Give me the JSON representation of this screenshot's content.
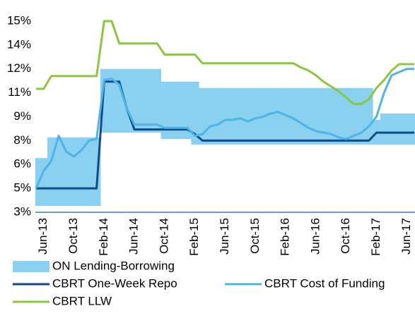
{
  "chart_data": {
    "type": "line",
    "categories": [
      null,
      "Jun-13",
      null,
      null,
      null,
      "Oct-13",
      null,
      null,
      null,
      "Feb-14",
      null,
      null,
      null,
      "Jun-14",
      null,
      null,
      null,
      "Oct-14",
      null,
      null,
      null,
      "Feb-15",
      null,
      null,
      null,
      "Jun-15",
      null,
      null,
      null,
      "Oct-15",
      null,
      null,
      null,
      "Feb-16",
      null,
      null,
      null,
      "Jun-16",
      null,
      null,
      null,
      "Oct-16",
      null,
      null,
      null,
      "Feb-17",
      null,
      null,
      null,
      "Jun-17",
      null
    ],
    "ylim": [
      3,
      15
    ],
    "yticks": [
      {
        "value": 3,
        "label": "3%"
      },
      {
        "value": 4.5,
        "label": "5%"
      },
      {
        "value": 6,
        "label": "6%"
      },
      {
        "value": 7.5,
        "label": "8%"
      },
      {
        "value": 9,
        "label": "9%"
      },
      {
        "value": 10.5,
        "label": "11%"
      },
      {
        "value": 12,
        "label": "12%"
      },
      {
        "value": 13.5,
        "label": "14%"
      },
      {
        "value": 15,
        "label": "15%"
      }
    ],
    "series": [
      {
        "name": "ON Lending-Borrowing",
        "type": "band",
        "color": "#8ad0f1",
        "values": [
          6.4,
          6.4,
          7.7,
          7.7,
          7.7,
          7.7,
          7.7,
          7.7,
          7.7,
          12.0,
          12.0,
          12.0,
          12.0,
          12.0,
          12.0,
          12.0,
          12.0,
          11.2,
          11.2,
          11.2,
          11.2,
          11.2,
          10.8,
          10.8,
          10.8,
          10.8,
          10.8,
          10.8,
          10.8,
          10.8,
          10.8,
          10.8,
          10.8,
          10.8,
          10.8,
          10.8,
          10.8,
          10.8,
          10.8,
          10.8,
          10.8,
          10.8,
          10.8,
          10.8,
          10.8,
          8.8,
          9.2,
          9.2,
          9.2,
          9.2,
          9.2
        ],
        "lower": [
          3.4,
          3.4,
          3.4,
          3.4,
          3.4,
          3.4,
          3.4,
          3.4,
          3.4,
          8.0,
          8.0,
          8.0,
          8.0,
          8.0,
          8.0,
          8.0,
          8.0,
          7.6,
          7.6,
          7.6,
          7.6,
          7.25,
          7.25,
          7.25,
          7.25,
          7.25,
          7.25,
          7.25,
          7.25,
          7.25,
          7.25,
          7.25,
          7.25,
          7.25,
          7.25,
          7.25,
          7.25,
          7.25,
          7.25,
          7.25,
          7.25,
          7.25,
          7.25,
          7.25,
          7.25,
          7.25,
          7.25,
          7.25,
          7.25,
          7.25,
          7.25
        ]
      },
      {
        "name": "CBRT One-Week Repo",
        "type": "line",
        "color": "#0e4a8c",
        "values": [
          4.5,
          4.5,
          4.5,
          4.5,
          4.5,
          4.5,
          4.5,
          4.5,
          4.5,
          11.2,
          11.2,
          11.2,
          9.5,
          8.2,
          8.2,
          8.2,
          8.2,
          8.2,
          8.2,
          8.2,
          8.2,
          7.9,
          7.5,
          7.5,
          7.5,
          7.5,
          7.5,
          7.5,
          7.5,
          7.5,
          7.5,
          7.5,
          7.5,
          7.5,
          7.5,
          7.5,
          7.5,
          7.5,
          7.5,
          7.5,
          7.5,
          7.5,
          7.5,
          7.5,
          7.5,
          8.0,
          8.0,
          8.0,
          8.0,
          8.0,
          8.0
        ]
      },
      {
        "name": "CBRT Cost of Funding",
        "type": "line",
        "color": "#4fb3e6",
        "values": [
          4.5,
          5.6,
          6.2,
          7.8,
          6.8,
          6.5,
          6.9,
          7.5,
          7.6,
          11.3,
          11.4,
          11.0,
          9.5,
          8.5,
          8.5,
          8.5,
          8.5,
          8.3,
          8.3,
          8.3,
          8.3,
          7.8,
          7.9,
          8.4,
          8.5,
          8.8,
          8.8,
          8.9,
          8.7,
          8.9,
          9.0,
          9.2,
          9.3,
          9.1,
          8.9,
          8.6,
          8.3,
          8.1,
          8.0,
          7.9,
          7.7,
          7.6,
          7.8,
          8.0,
          8.4,
          9.0,
          10.5,
          11.6,
          11.8,
          12.0,
          12.0
        ]
      },
      {
        "name": "CBRT LLW",
        "type": "line",
        "color": "#8cc63f",
        "values": [
          10.75,
          10.75,
          11.55,
          11.55,
          11.55,
          11.55,
          11.55,
          11.55,
          11.55,
          15,
          15,
          13.6,
          13.6,
          13.6,
          13.6,
          13.6,
          13.6,
          12.9,
          12.9,
          12.9,
          12.9,
          12.9,
          12.35,
          12.35,
          12.35,
          12.35,
          12.35,
          12.35,
          12.35,
          12.35,
          12.35,
          12.35,
          12.35,
          12.35,
          12.35,
          12.1,
          11.9,
          11.6,
          11.2,
          10.9,
          10.6,
          10.2,
          9.8,
          9.8,
          10.1,
          10.8,
          11.3,
          11.9,
          12.3,
          12.3,
          12.3
        ]
      }
    ]
  }
}
